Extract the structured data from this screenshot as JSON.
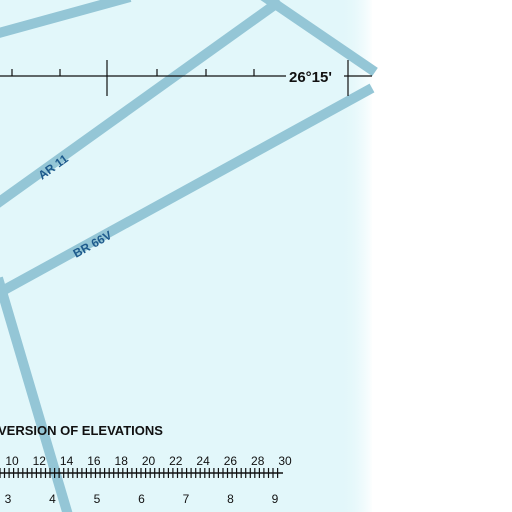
{
  "map": {
    "water_color": "#e2f7fa",
    "route_color": "#94c6d6",
    "blank_color": "#ffffff",
    "latitude_label": "26°15'",
    "routes": [
      {
        "name": "AR 11"
      },
      {
        "name": "BR 66V"
      }
    ],
    "scale": {
      "title": "VERSION OF ELEVATIONS",
      "feet_labels": [
        "10",
        "12",
        "14",
        "16",
        "18",
        "20",
        "22",
        "24",
        "26",
        "28",
        "30"
      ],
      "meter_labels": [
        "3",
        "4",
        "5",
        "6",
        "7",
        "8",
        "9"
      ]
    }
  }
}
